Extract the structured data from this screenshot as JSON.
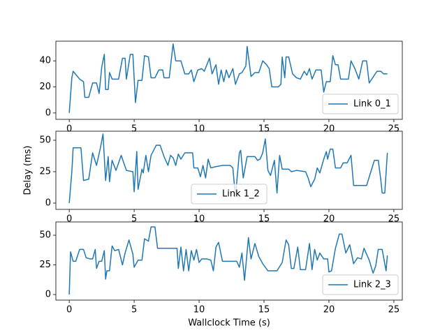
{
  "chart_data": [
    {
      "type": "line",
      "x": [
        0,
        0.2,
        0.3,
        0.8,
        1.1,
        1.2,
        1.5,
        1.8,
        2.1,
        2.3,
        2.5,
        2.7,
        2.8,
        3.0,
        3.1,
        3.3,
        3.8,
        4.1,
        4.3,
        4.4,
        4.7,
        4.9,
        5.1,
        5.3,
        5.6,
        5.8,
        6.1,
        6.3,
        6.6,
        6.9,
        7.2,
        7.3,
        7.7,
        8.0,
        8.2,
        8.6,
        8.9,
        9.2,
        9.4,
        9.6,
        9.9,
        10.2,
        10.4,
        10.8,
        11.0,
        11.3,
        11.5,
        11.7,
        11.9,
        12.1,
        12.3,
        12.6,
        12.8,
        13.1,
        13.3,
        13.6,
        13.7,
        14.0,
        14.3,
        14.6,
        14.9,
        15.2,
        15.4,
        15.6,
        16.1,
        16.3,
        16.4,
        16.6,
        16.7,
        16.9,
        17.2,
        17.5,
        17.8,
        18.1,
        18.3,
        18.5,
        18.7,
        19.0,
        19.4,
        19.6,
        19.8,
        20.1,
        20.3,
        20.5,
        20.7,
        20.9,
        21.5,
        21.7,
        22.0,
        22.3,
        22.6,
        22.9,
        23.1,
        23.3,
        23.7,
        24.0,
        24.2,
        24.5
      ],
      "series": [
        {
          "name": "Link 0_1",
          "color": "#1f77b4",
          "values": [
            0,
            27,
            32,
            26,
            24,
            12,
            12,
            23,
            23,
            15,
            35,
            45,
            18,
            18,
            31,
            26,
            26,
            42,
            42,
            26,
            45,
            45,
            8,
            25,
            25,
            44,
            43,
            27,
            27,
            33,
            33,
            27,
            27,
            53,
            40,
            40,
            30,
            30,
            33,
            24,
            33,
            34,
            32,
            42,
            30,
            37,
            22,
            33,
            24,
            33,
            27,
            34,
            22,
            30,
            31,
            36,
            51,
            28,
            31,
            31,
            40,
            37,
            34,
            20,
            20,
            22,
            43,
            27,
            43,
            43,
            30,
            27,
            26,
            32,
            29,
            34,
            26,
            33,
            33,
            16,
            24,
            24,
            44,
            37,
            37,
            26,
            26,
            40,
            34,
            26,
            40,
            40,
            23,
            26,
            32,
            32,
            30,
            30
          ]
        }
      ],
      "xlim": [
        -1.03,
        25.65
      ],
      "ylim": [
        -4.9,
        55.1
      ],
      "xticks": [
        0,
        5,
        10,
        15,
        20,
        25
      ],
      "yticks": [
        0,
        20,
        40
      ],
      "legend": "lower right"
    },
    {
      "type": "line",
      "ylabel": "Delay (ms)",
      "x": [
        0,
        0.2,
        0.3,
        0.9,
        1.1,
        1.5,
        1.8,
        2.1,
        2.4,
        2.6,
        2.8,
        3.0,
        3.1,
        3.3,
        3.6,
        4.0,
        4.2,
        4.4,
        4.9,
        5.0,
        5.2,
        5.3,
        5.6,
        5.7,
        5.9,
        6.1,
        6.3,
        6.7,
        7.0,
        7.3,
        7.6,
        7.8,
        8.0,
        8.2,
        8.4,
        8.6,
        8.9,
        9.5,
        9.6,
        9.9,
        10.1,
        10.3,
        10.5,
        10.7,
        10.9,
        11.3,
        11.8,
        12.4,
        12.6,
        12.8,
        13.1,
        13.2,
        13.4,
        13.7,
        14.3,
        14.5,
        14.7,
        14.9,
        15.1,
        15.3,
        15.5,
        15.8,
        16.0,
        16.2,
        16.4,
        16.9,
        17.1,
        17.5,
        18.2,
        18.4,
        18.6,
        18.9,
        19.1,
        19.3,
        19.6,
        19.8,
        19.9,
        20.1,
        20.3,
        20.5,
        20.9,
        21.1,
        21.4,
        21.7,
        21.9,
        22.9,
        23.2,
        23.5,
        23.8,
        24.0,
        24.1,
        24.3,
        24.5
      ],
      "series": [
        {
          "name": "Link 1_2",
          "color": "#1f77b4",
          "values": [
            0,
            25,
            44,
            44,
            18,
            19,
            40,
            30,
            44,
            55,
            18,
            37,
            17,
            34,
            26,
            38,
            32,
            26,
            25,
            9,
            41,
            11,
            27,
            24,
            38,
            25,
            38,
            46,
            46,
            37,
            30,
            38,
            36,
            30,
            39,
            35,
            40,
            40,
            28,
            28,
            21,
            30,
            20,
            35,
            28,
            29,
            30,
            30,
            28,
            5,
            40,
            42,
            20,
            37,
            37,
            34,
            35,
            40,
            51,
            26,
            22,
            34,
            8,
            38,
            27,
            27,
            25,
            26,
            25,
            20,
            13,
            19,
            28,
            24,
            35,
            41,
            35,
            43,
            43,
            28,
            28,
            32,
            32,
            38,
            14,
            14,
            24,
            34,
            34,
            18,
            8,
            8,
            40
          ]
        }
      ],
      "xlim": [
        -1.03,
        25.65
      ],
      "ylim": [
        -5,
        57.2
      ],
      "xticks": [
        0,
        5,
        10,
        15,
        20,
        25
      ],
      "yticks": [
        0,
        25,
        50
      ],
      "legend": "lower center"
    },
    {
      "type": "line",
      "xlabel": "Wallclock Time (s)",
      "x": [
        0,
        0.1,
        0.3,
        0.5,
        0.8,
        1.1,
        1.3,
        1.6,
        1.8,
        2.0,
        2.1,
        2.3,
        2.5,
        2.7,
        2.8,
        2.9,
        3.1,
        3.3,
        3.5,
        3.8,
        4.1,
        4.3,
        4.6,
        4.9,
        5.0,
        5.3,
        5.6,
        5.8,
        6.1,
        6.3,
        6.6,
        6.8,
        8.3,
        8.4,
        8.6,
        8.8,
        9.0,
        9.2,
        9.4,
        9.6,
        9.8,
        10.0,
        10.2,
        10.6,
        10.9,
        11.1,
        11.3,
        11.5,
        11.8,
        12.9,
        13.1,
        13.3,
        13.5,
        13.8,
        14.0,
        14.3,
        14.6,
        14.9,
        15.3,
        16.0,
        16.4,
        16.7,
        16.9,
        17.1,
        17.3,
        17.6,
        17.8,
        18.2,
        18.5,
        18.7,
        18.9,
        19.1,
        19.3,
        19.6,
        19.9,
        20.0,
        20.2,
        20.5,
        20.8,
        21.0,
        21.3,
        21.6,
        21.9,
        22.2,
        22.5,
        22.7,
        23.1,
        23.4,
        23.6,
        23.8,
        24.1,
        24.3,
        24.4,
        24.5
      ],
      "series": [
        {
          "name": "Link 2_3",
          "color": "#1f77b4",
          "values": [
            0,
            36,
            28,
            28,
            38,
            38,
            31,
            30,
            30,
            38,
            22,
            28,
            28,
            37,
            13,
            20,
            20,
            41,
            37,
            38,
            25,
            35,
            46,
            34,
            23,
            29,
            29,
            47,
            45,
            57,
            57,
            39,
            39,
            22,
            40,
            20,
            38,
            20,
            37,
            29,
            38,
            27,
            30,
            30,
            29,
            20,
            40,
            44,
            28,
            28,
            23,
            35,
            12,
            48,
            30,
            43,
            32,
            26,
            20,
            20,
            27,
            46,
            42,
            22,
            22,
            40,
            21,
            21,
            43,
            21,
            38,
            29,
            35,
            30,
            30,
            19,
            20,
            39,
            51,
            51,
            35,
            42,
            26,
            31,
            30,
            39,
            29,
            18,
            24,
            38,
            38,
            26,
            20,
            33
          ]
        }
      ],
      "xlim": [
        -1.03,
        25.65
      ],
      "ylim": [
        -4.7,
        61.2
      ],
      "xticks": [
        0,
        5,
        10,
        15,
        20,
        25
      ],
      "yticks": [
        0,
        25,
        50
      ],
      "legend": "lower right"
    }
  ]
}
